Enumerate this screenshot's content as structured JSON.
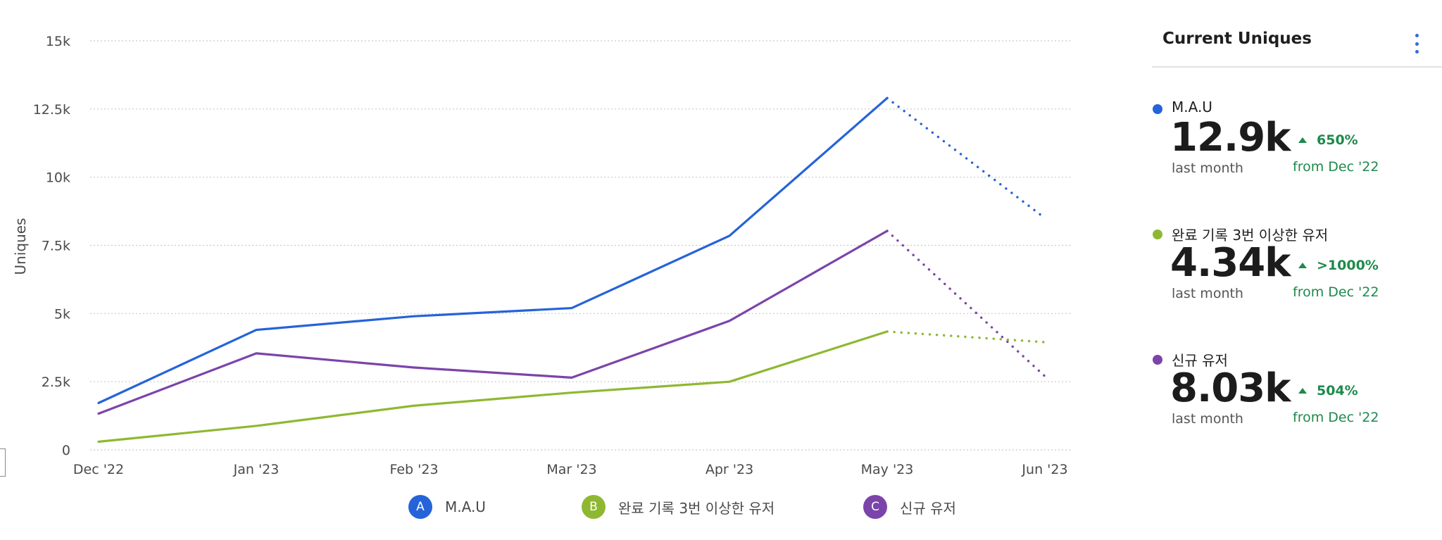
{
  "chart_data": {
    "type": "line",
    "ylabel": "Uniques",
    "xlabel": "",
    "categories": [
      "Dec '22",
      "Jan '23",
      "Feb '23",
      "Mar '23",
      "Apr '23",
      "May '23",
      "Jun '23"
    ],
    "y_ticks": [
      "0",
      "2.5k",
      "5k",
      "7.5k",
      "10k",
      "12.5k",
      "15k"
    ],
    "y_tick_values": [
      0,
      2500,
      5000,
      7500,
      10000,
      12500,
      15000
    ],
    "ylim": [
      0,
      15000
    ],
    "grid": true,
    "legend_position": "bottom",
    "series": [
      {
        "name": "M.A.U",
        "badge": "A",
        "color": "#2563d9",
        "values": [
          1720,
          4400,
          4900,
          5200,
          7850,
          12900,
          8500
        ],
        "projected_from_index": 5
      },
      {
        "name": "완료 기록 3번 이상한 유저",
        "badge": "B",
        "color": "#8fb832",
        "values": [
          300,
          880,
          1620,
          2100,
          2500,
          4340,
          3950
        ],
        "projected_from_index": 5
      },
      {
        "name": "신규 유저",
        "badge": "C",
        "color": "#7b44aa",
        "values": [
          1330,
          3540,
          3020,
          2650,
          4730,
          8030,
          2700
        ],
        "projected_from_index": 5
      }
    ]
  },
  "panel": {
    "title": "Current Uniques",
    "menu_icon": "kebab-menu-icon",
    "metrics": [
      {
        "name": "M.A.U",
        "color": "#2563d9",
        "value": "12.9k",
        "sub": "last month",
        "change": "650%",
        "from": "from Dec '22"
      },
      {
        "name": "완료 기록 3번 이상한 유저",
        "color": "#8fb832",
        "value": "4.34k",
        "sub": "last month",
        "change": ">1000%",
        "from": "from Dec '22"
      },
      {
        "name": "신규 유저",
        "color": "#7b44aa",
        "value": "8.03k",
        "sub": "last month",
        "change": "504%",
        "from": "from Dec '22"
      }
    ],
    "change_color": "#1e8a4c"
  }
}
